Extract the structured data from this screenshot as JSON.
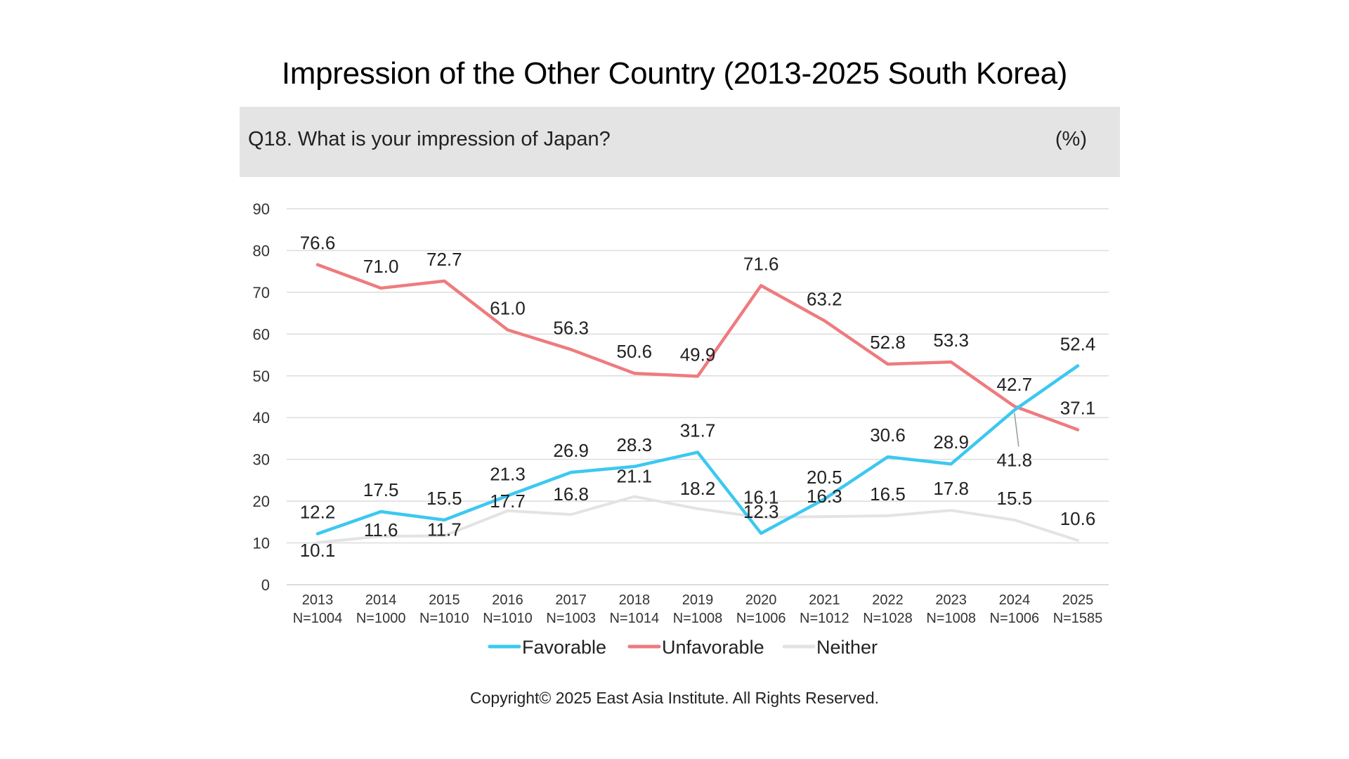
{
  "title": "Impression of the Other Country (2013-2025 South Korea)",
  "question": "Q18. What is your impression of Japan?",
  "unit": "(%)",
  "copyright": "Copyright© 2025 East Asia Institute. All Rights Reserved.",
  "chart_data": {
    "type": "line",
    "categories": [
      "2013",
      "2014",
      "2015",
      "2016",
      "2017",
      "2018",
      "2019",
      "2020",
      "2021",
      "2022",
      "2023",
      "2024",
      "2025"
    ],
    "sample_sizes": [
      "N=1004",
      "N=1000",
      "N=1010",
      "N=1010",
      "N=1003",
      "N=1014",
      "N=1008",
      "N=1006",
      "N=1012",
      "N=1028",
      "N=1008",
      "N=1006",
      "N=1585"
    ],
    "series": [
      {
        "name": "Favorable",
        "color": "#3cc8f0",
        "values": [
          12.2,
          17.5,
          15.5,
          21.3,
          26.9,
          28.3,
          31.7,
          12.3,
          20.5,
          30.6,
          28.9,
          41.8,
          52.4
        ]
      },
      {
        "name": "Unfavorable",
        "color": "#ee7b7f",
        "values": [
          76.6,
          71.0,
          72.7,
          61.0,
          56.3,
          50.6,
          49.9,
          71.6,
          63.2,
          52.8,
          53.3,
          42.7,
          37.1
        ]
      },
      {
        "name": "Neither",
        "color": "#e3e3e3",
        "values": [
          10.1,
          11.6,
          11.7,
          17.7,
          16.8,
          21.1,
          18.2,
          16.1,
          16.3,
          16.5,
          17.8,
          15.5,
          10.6
        ]
      }
    ],
    "y_ticks": [
      0,
      10,
      20,
      30,
      40,
      50,
      60,
      70,
      80,
      90
    ],
    "ylim": [
      0,
      90
    ],
    "grid": true,
    "legend_position": "bottom",
    "xlabel": "",
    "ylabel": ""
  }
}
